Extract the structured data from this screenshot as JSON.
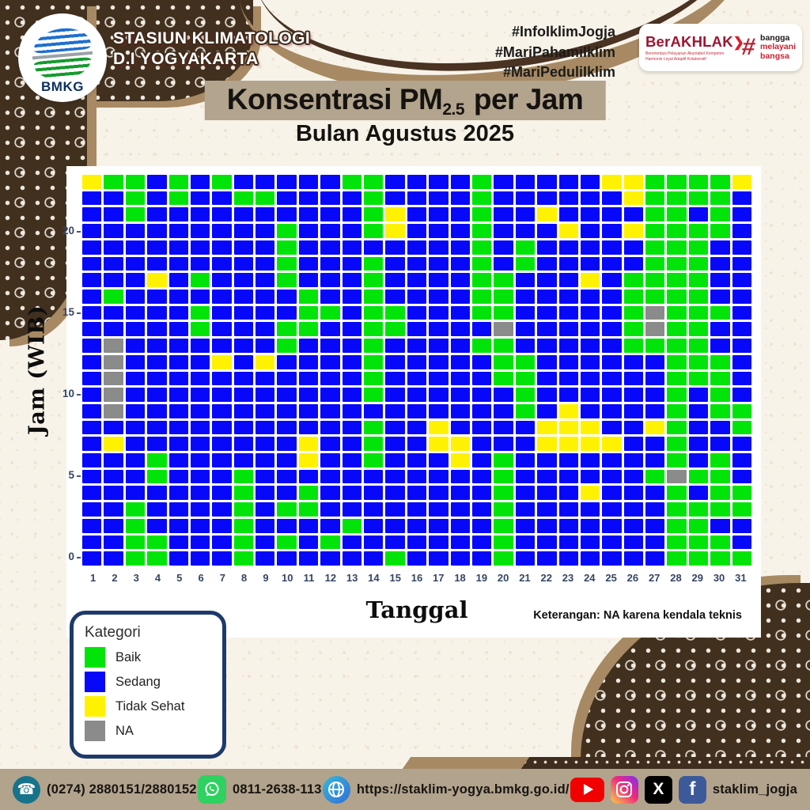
{
  "header": {
    "logo_label": "BMKG",
    "station_line1": "STASIUN KLIMATOLOGI",
    "station_line2": "D.I YOGYAKARTA",
    "hashtags": [
      "#InfoIklimJogja",
      "#MariPahamiIklim",
      "#MariPeduliIklim"
    ],
    "berakhlak_title": "BerAKHLAK",
    "berakhlak_arrow": "❯",
    "berakhlak_subtitle": "Berorientasi Pelayanan Akuntabel Kompeten Harmonis Loyal Adaptif Kolaboratif",
    "berakhlak_hash": "#",
    "tagline_1": "bangga",
    "tagline_2": "melayani",
    "tagline_3": "bangsa"
  },
  "title": {
    "prefix": "Konsentrasi PM",
    "subscript": "2.5",
    "suffix": " per Jam",
    "subtitle": "Bulan Agustus 2025"
  },
  "chart_data": {
    "type": "heatmap",
    "title": "Konsentrasi PM2.5 per Jam — Bulan Agustus 2025",
    "xlabel": "Tanggal",
    "ylabel": "Jam (WIB)",
    "x_categories": [
      1,
      2,
      3,
      4,
      5,
      6,
      7,
      8,
      9,
      10,
      11,
      12,
      13,
      14,
      15,
      16,
      17,
      18,
      19,
      20,
      21,
      22,
      23,
      24,
      25,
      26,
      27,
      28,
      29,
      30,
      31
    ],
    "y_hours_top_to_bottom": [
      23,
      22,
      21,
      20,
      19,
      18,
      17,
      16,
      15,
      14,
      13,
      12,
      11,
      10,
      9,
      8,
      7,
      6,
      5,
      4,
      3,
      2,
      1,
      0
    ],
    "y_tick_labels": [
      20,
      15,
      10,
      5,
      0
    ],
    "legend_title": "Kategori",
    "legend_items": [
      {
        "code": "G",
        "label": "Baik",
        "color": "#00e40a"
      },
      {
        "code": "B",
        "label": "Sedang",
        "color": "#0708fa"
      },
      {
        "code": "Y",
        "label": "Tidak Sehat",
        "color": "#fff200"
      },
      {
        "code": "N",
        "label": "NA",
        "color": "#8b8b8b"
      }
    ],
    "note": "Keterangan: NA karena kendala teknis",
    "rows_hour23_to_hour0": [
      "YGGBGBGBBBBBGGBBBBGBBBBBYYGGGGY",
      "BBGBGBBGGBBBBGBBBBGBBBBBBYGGGGB",
      "BBGBBBBBBBBBBGYBBBGBBYBBBBGGBGB",
      "BBBBBBBBBGBBBGYBBBGBBBYBBYGGGGB",
      "BBBBBBBBBGBBBBBBBBGBGBBBBBGGGBB",
      "BBBBBBBBBGBBBGBBBBGBGBBBBBGGGBB",
      "BBBYBGBBBGBBBGBBBBGGBBBYBGGGGBB",
      "BGBBBBBBBBGBBGBBBBGGBBBBBGGGGBB",
      "BBBBBGBBBBGGBGGBBBGGBBBBBGNGGGB",
      "BBBBBGBBBGGBBGGBBBBNBBBBBGNGGBB",
      "BNBBBBBBBGBBBGBBBBGGBBBBBGGGGBB",
      "BNBBBBYBYBBBBGBBBBBGGBBBBBBGGGB",
      "BNBBBBBBBBBBBGBBBBBGGBBBBBBGGGB",
      "BNBBBBBBBBBBBGBBBBBBGBBBBBBGBGB",
      "BNBBBBBBBBBBBBBBBBBBGBYBBBBGBGG",
      "BBBBBBBBBBBBBGBBYBBBBYYYBBYGBBG",
      "BYBBBBBBBBYBBGBBYYBBBYYYYBBGBBB",
      "BBBGBBBBBBYBBGBBBYBGBBBBBBBGBGB",
      "BBBGBBBGBBBBBBBBBBBGBBBBBBGNGGB",
      "BBBBBBBGBBGBBBBBBBBGBBBYBBBGBGG",
      "BBGBBBBGBGGBBBBBBBBGBBBBBBBGGGG",
      "BBGBBBBGBBBBGBBBBBBGBBBBBBBGGBB",
      "BBGGBBBGBGBGBBBBBBBGBBBBBBBGGGB",
      "BBGGBBBGBBBBBBGBBBBGBBBBBBBGGGG"
    ]
  },
  "footer": {
    "phone": "(0274) 2880151/2880152",
    "whatsapp": "0811-2638-113",
    "website": "https://staklim-yogya.bmkg.go.id/",
    "social_handle": "staklim_jogja"
  }
}
